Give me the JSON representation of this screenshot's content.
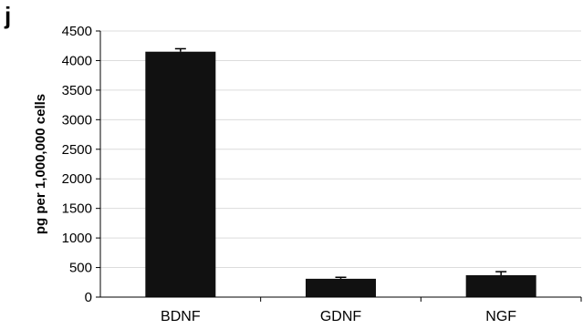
{
  "panel_label": "j",
  "chart_data": {
    "type": "bar",
    "categories": [
      "BDNF",
      "GDNF",
      "NGF"
    ],
    "values": [
      4150,
      310,
      370
    ],
    "errors": [
      50,
      25,
      60
    ],
    "ylabel": "pg per 1,000,000 cells",
    "xlabel": "",
    "ylim": [
      0,
      4500
    ],
    "yticks": [
      0,
      500,
      1000,
      1500,
      2000,
      2500,
      3000,
      3500,
      4000,
      4500
    ],
    "grid": true,
    "bar_color": "#111111",
    "grid_color": "#dcdcdc"
  }
}
